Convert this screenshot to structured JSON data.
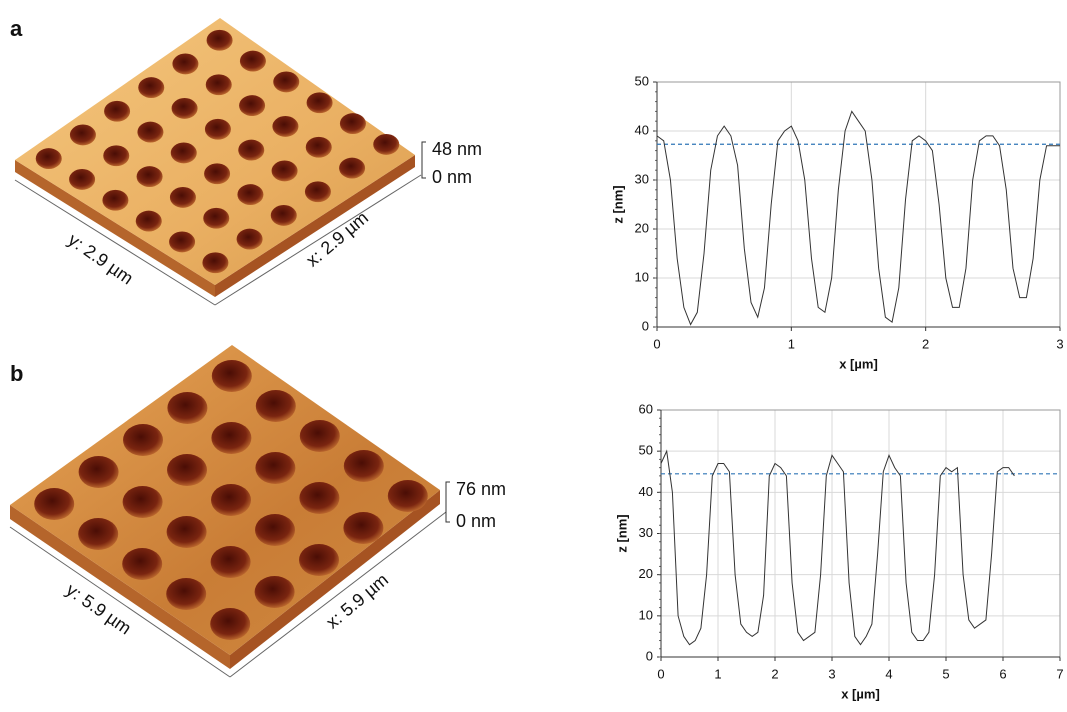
{
  "panels": [
    {
      "label": "a",
      "afm": {
        "z_max": "48 nm",
        "z_min": "0 nm",
        "y_size": "y: 2.9 µm",
        "x_size": "x: 2.9 µm"
      }
    },
    {
      "label": "b",
      "afm": {
        "z_max": "76 nm",
        "z_min": "0 nm",
        "y_size": "y: 5.9 µm",
        "x_size": "x: 5.9 µm"
      }
    }
  ],
  "chart_data": [
    {
      "type": "line",
      "xlabel": "x [µm]",
      "ylabel": "z [nm]",
      "color": "#333333",
      "x": [
        0,
        0.05,
        0.1,
        0.15,
        0.2,
        0.25,
        0.3,
        0.35,
        0.4,
        0.45,
        0.5,
        0.55,
        0.6,
        0.65,
        0.7,
        0.75,
        0.8,
        0.85,
        0.9,
        0.95,
        1.0,
        1.05,
        1.1,
        1.15,
        1.2,
        1.25,
        1.3,
        1.35,
        1.4,
        1.45,
        1.5,
        1.55,
        1.6,
        1.65,
        1.7,
        1.75,
        1.8,
        1.85,
        1.9,
        1.95,
        2.0,
        2.05,
        2.1,
        2.15,
        2.2,
        2.25,
        2.3,
        2.35,
        2.4,
        2.45,
        2.5,
        2.55,
        2.6,
        2.65,
        2.7,
        2.75,
        2.8,
        2.85,
        2.9,
        2.95,
        3.0
      ],
      "values": [
        39,
        38,
        30,
        14,
        4,
        0.5,
        3,
        15,
        32,
        39,
        41,
        39,
        33,
        16,
        5,
        2,
        8,
        25,
        38,
        40,
        41,
        38,
        30,
        14,
        4,
        3,
        10,
        28,
        40,
        44,
        42,
        40,
        30,
        12,
        2,
        1,
        8,
        26,
        38,
        39,
        38,
        36,
        25,
        10,
        4,
        4,
        12,
        30,
        38,
        39,
        39,
        37,
        28,
        12,
        6,
        6,
        14,
        30,
        37,
        37,
        37
      ],
      "reference_line": {
        "value": 37.3,
        "color": "#2e75b6",
        "dashed": true
      },
      "xlim": [
        0,
        3
      ],
      "xticks": [
        0,
        1,
        2,
        3
      ],
      "ylim": [
        0,
        50
      ],
      "yticks": [
        0,
        10,
        20,
        30,
        40,
        50
      ],
      "grid": true
    },
    {
      "type": "line",
      "xlabel": "x [µm]",
      "ylabel": "z [nm]",
      "color": "#333333",
      "x": [
        0,
        0.1,
        0.2,
        0.3,
        0.4,
        0.5,
        0.6,
        0.7,
        0.8,
        0.9,
        1.0,
        1.1,
        1.2,
        1.3,
        1.4,
        1.5,
        1.6,
        1.7,
        1.8,
        1.9,
        2.0,
        2.1,
        2.2,
        2.3,
        2.4,
        2.5,
        2.6,
        2.7,
        2.8,
        2.9,
        3.0,
        3.1,
        3.2,
        3.3,
        3.4,
        3.5,
        3.6,
        3.7,
        3.8,
        3.9,
        4.0,
        4.1,
        4.2,
        4.3,
        4.4,
        4.5,
        4.6,
        4.7,
        4.8,
        4.9,
        5.0,
        5.1,
        5.2,
        5.3,
        5.4,
        5.5,
        5.6,
        5.7,
        5.8,
        5.9,
        6.0,
        6.1,
        6.2
      ],
      "values": [
        47,
        50,
        40,
        10,
        5,
        3,
        4,
        7,
        20,
        44,
        47,
        47,
        45,
        20,
        8,
        6,
        5,
        6,
        15,
        44,
        47,
        46,
        44,
        18,
        6,
        4,
        5,
        6,
        20,
        44,
        49,
        47,
        45,
        18,
        5,
        3,
        5,
        8,
        25,
        45,
        49,
        46,
        44,
        18,
        6,
        4,
        4,
        6,
        20,
        44,
        46,
        45,
        46,
        20,
        9,
        7,
        8,
        9,
        25,
        45,
        46,
        46,
        44
      ],
      "reference_line": {
        "value": 44.5,
        "color": "#2e75b6",
        "dashed": true
      },
      "xlim": [
        0,
        7
      ],
      "xticks": [
        0,
        1,
        2,
        3,
        4,
        5,
        6,
        7
      ],
      "ylim": [
        0,
        60
      ],
      "yticks": [
        0,
        10,
        20,
        30,
        40,
        50,
        60
      ],
      "grid": true
    }
  ]
}
